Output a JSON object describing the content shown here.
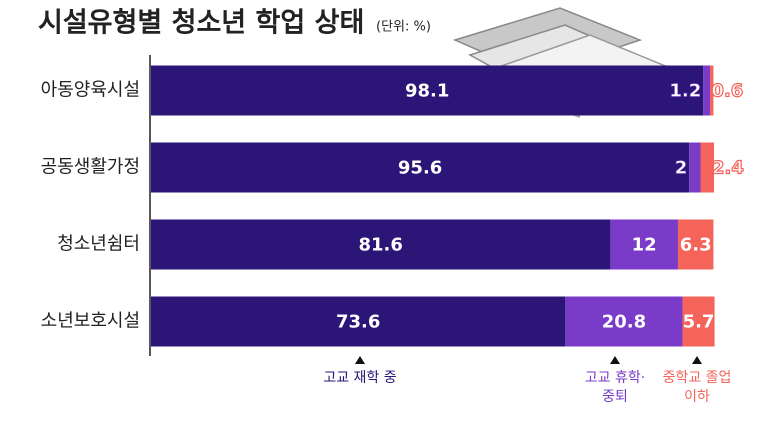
{
  "chart_data": {
    "type": "stacked-bar-horizontal",
    "title": "시설유형별 청소년 학업 상태",
    "subtitle": "(단위: %)",
    "categories": [
      "아동양육시설",
      "공동생활가정",
      "청소년쉼터",
      "소년보호시설"
    ],
    "series": [
      {
        "name": "고교 재학 중",
        "color": "#2b1678",
        "values": [
          98.1,
          95.6,
          81.6,
          73.6
        ]
      },
      {
        "name": "고교 휴학·중퇴",
        "color": "#7a3cc8",
        "values": [
          1.2,
          2.0,
          12.0,
          20.8
        ]
      },
      {
        "name": "중학교 졸업 이하",
        "color": "#f4645a",
        "values": [
          0.6,
          2.4,
          6.3,
          5.7
        ]
      }
    ],
    "xlim": [
      0,
      100
    ]
  }
}
